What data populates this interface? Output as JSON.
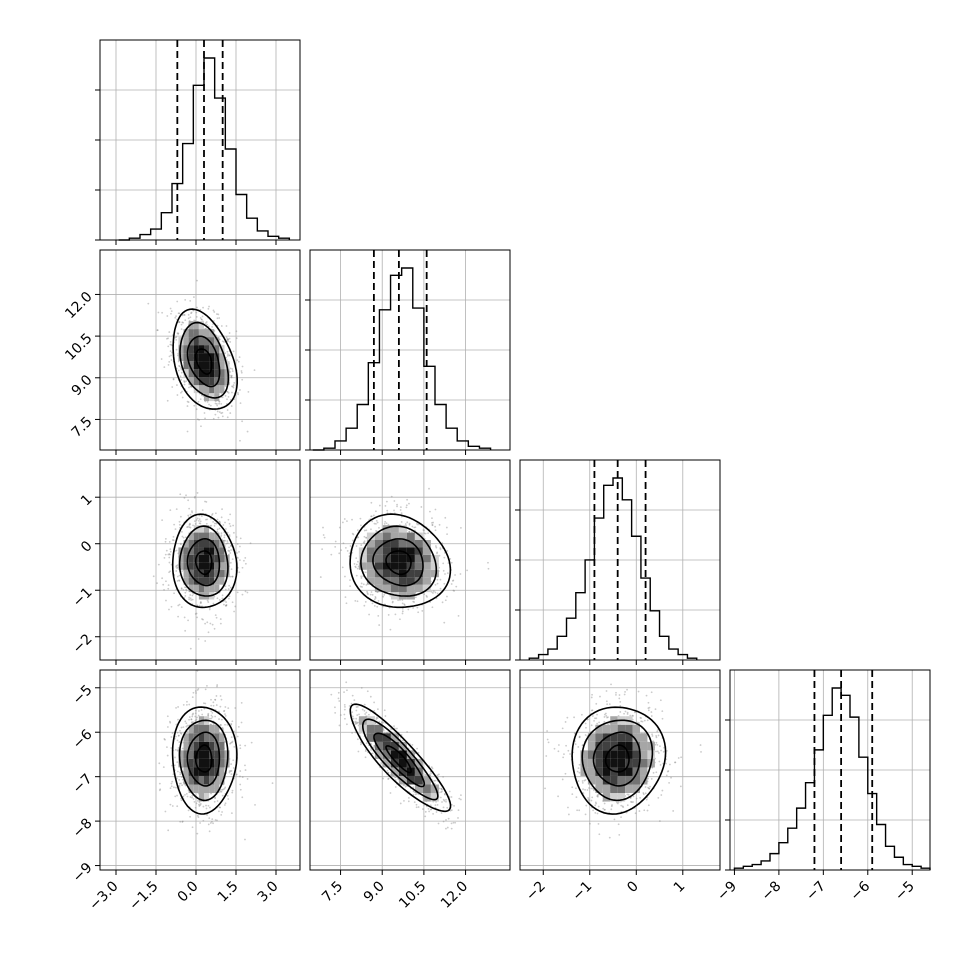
{
  "chart_data": {
    "type": "corner",
    "colors": {
      "grid": "#b0b0b0",
      "line": "#000000",
      "scatter": "#8c8c8c",
      "density_ramp": [
        "#f2f2f2",
        "#d0d0d0",
        "#a6a6a6",
        "#737373",
        "#404040",
        "#111111"
      ]
    },
    "grid": true,
    "parameters": [
      {
        "axis_range": [
          -3.6,
          3.9
        ],
        "tick_values": [
          -3.0,
          -1.5,
          0.0,
          1.5,
          3.0
        ],
        "tick_labels": [
          "−3.0",
          "−1.5",
          "0.0",
          "1.5",
          "3.0"
        ],
        "quantiles": [
          -0.7,
          0.3,
          1.0
        ],
        "mean": 0.3,
        "sd": 0.6,
        "hist_bins": [
          [
            -2.9,
            -2.5,
            0.0
          ],
          [
            -2.5,
            -2.1,
            0.01
          ],
          [
            -2.1,
            -1.7,
            0.03
          ],
          [
            -1.7,
            -1.3,
            0.06
          ],
          [
            -1.3,
            -0.9,
            0.15
          ],
          [
            -0.9,
            -0.5,
            0.31
          ],
          [
            -0.5,
            -0.1,
            0.53
          ],
          [
            -0.1,
            0.3,
            0.85
          ],
          [
            0.3,
            0.7,
            1.0
          ],
          [
            0.7,
            1.1,
            0.78
          ],
          [
            1.1,
            1.5,
            0.5
          ],
          [
            1.5,
            1.9,
            0.25
          ],
          [
            1.9,
            2.3,
            0.12
          ],
          [
            2.3,
            2.7,
            0.05
          ],
          [
            2.7,
            3.1,
            0.02
          ],
          [
            3.1,
            3.5,
            0.01
          ]
        ]
      },
      {
        "axis_range": [
          6.4,
          13.6
        ],
        "tick_values": [
          7.5,
          9.0,
          10.5,
          12.0
        ],
        "tick_labels": [
          "7.5",
          "9.0",
          "10.5",
          "12.0"
        ],
        "quantiles": [
          8.7,
          9.6,
          10.6
        ],
        "mean": 9.6,
        "sd": 0.9,
        "hist_bins": [
          [
            6.5,
            6.9,
            0.0
          ],
          [
            6.9,
            7.3,
            0.01
          ],
          [
            7.3,
            7.7,
            0.05
          ],
          [
            7.7,
            8.1,
            0.12
          ],
          [
            8.1,
            8.5,
            0.25
          ],
          [
            8.5,
            8.9,
            0.48
          ],
          [
            8.9,
            9.3,
            0.77
          ],
          [
            9.3,
            9.7,
            0.96
          ],
          [
            9.7,
            10.1,
            1.0
          ],
          [
            10.1,
            10.5,
            0.78
          ],
          [
            10.5,
            10.9,
            0.46
          ],
          [
            10.9,
            11.3,
            0.25
          ],
          [
            11.3,
            11.7,
            0.12
          ],
          [
            11.7,
            12.1,
            0.05
          ],
          [
            12.1,
            12.5,
            0.02
          ],
          [
            12.5,
            12.9,
            0.01
          ]
        ]
      },
      {
        "axis_range": [
          -2.5,
          1.8
        ],
        "tick_values": [
          -2,
          -1,
          0,
          1
        ],
        "tick_labels": [
          "−2",
          "−1",
          "0",
          "1"
        ],
        "quantiles": [
          -0.9,
          -0.4,
          0.2
        ],
        "mean": -0.4,
        "sd": 0.5,
        "hist_bins": [
          [
            -2.3,
            -2.1,
            0.01
          ],
          [
            -2.1,
            -1.9,
            0.03
          ],
          [
            -1.9,
            -1.7,
            0.06
          ],
          [
            -1.7,
            -1.5,
            0.13
          ],
          [
            -1.5,
            -1.3,
            0.23
          ],
          [
            -1.3,
            -1.1,
            0.37
          ],
          [
            -1.1,
            -0.9,
            0.55
          ],
          [
            -0.9,
            -0.7,
            0.78
          ],
          [
            -0.7,
            -0.5,
            0.96
          ],
          [
            -0.5,
            -0.3,
            1.0
          ],
          [
            -0.3,
            -0.1,
            0.88
          ],
          [
            -0.1,
            0.1,
            0.68
          ],
          [
            0.1,
            0.3,
            0.45
          ],
          [
            0.3,
            0.5,
            0.27
          ],
          [
            0.5,
            0.7,
            0.13
          ],
          [
            0.7,
            0.9,
            0.06
          ],
          [
            0.9,
            1.1,
            0.03
          ],
          [
            1.1,
            1.3,
            0.01
          ]
        ]
      },
      {
        "axis_range": [
          -9.1,
          -4.6
        ],
        "tick_values": [
          -9,
          -8,
          -7,
          -6,
          -5
        ],
        "tick_labels": [
          "−9",
          "−8",
          "−7",
          "−6",
          "−5"
        ],
        "quantiles": [
          -7.2,
          -6.6,
          -5.9
        ],
        "mean": -6.6,
        "sd": 0.6,
        "hist_bins": [
          [
            -9.0,
            -8.8,
            0.01
          ],
          [
            -8.8,
            -8.6,
            0.02
          ],
          [
            -8.6,
            -8.4,
            0.03
          ],
          [
            -8.4,
            -8.2,
            0.05
          ],
          [
            -8.2,
            -8.0,
            0.09
          ],
          [
            -8.0,
            -7.8,
            0.15
          ],
          [
            -7.8,
            -7.6,
            0.23
          ],
          [
            -7.6,
            -7.4,
            0.34
          ],
          [
            -7.4,
            -7.2,
            0.48
          ],
          [
            -7.2,
            -7.0,
            0.66
          ],
          [
            -7.0,
            -6.8,
            0.85
          ],
          [
            -6.8,
            -6.6,
            1.0
          ],
          [
            -6.6,
            -6.4,
            0.96
          ],
          [
            -6.4,
            -6.2,
            0.84
          ],
          [
            -6.2,
            -6.0,
            0.62
          ],
          [
            -6.0,
            -5.8,
            0.42
          ],
          [
            -5.8,
            -5.6,
            0.25
          ],
          [
            -5.6,
            -5.4,
            0.13
          ],
          [
            -5.4,
            -5.2,
            0.07
          ],
          [
            -5.2,
            -5.0,
            0.03
          ],
          [
            -5.0,
            -4.8,
            0.02
          ],
          [
            -4.8,
            -4.6,
            0.01
          ]
        ]
      }
    ],
    "correlations": [
      [
        1,
        -0.35,
        -0.05,
        0.0
      ],
      [
        -0.35,
        1,
        -0.1,
        -0.88
      ],
      [
        -0.05,
        -0.1,
        1,
        0.05
      ],
      [
        0.0,
        -0.88,
        0.05,
        1
      ]
    ],
    "contour_sigma_levels": [
      0.5,
      1.0,
      1.5,
      2.0
    ]
  }
}
